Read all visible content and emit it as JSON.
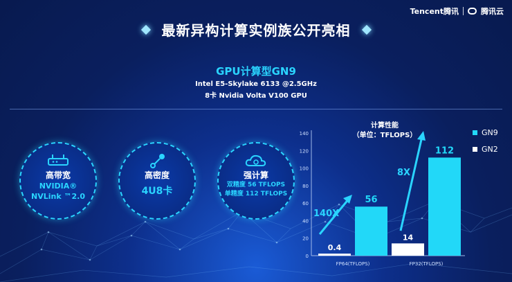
{
  "logo": {
    "brand": "Tencent腾讯",
    "cloud": "腾讯云"
  },
  "header": {
    "title": "最新异构计算实例族公开亮相",
    "subtitle": "GPU计算型GN9",
    "spec_line1": "Intel E5-Skylake 6133 @2.5GHz",
    "spec_line2": "8卡 Nvidia Volta V100 GPU"
  },
  "features": [
    {
      "icon": "router-icon",
      "head": "高带宽",
      "line1": "NVIDIA®",
      "line2": "NVLink ™2.0"
    },
    {
      "icon": "node-icon",
      "head": "高密度",
      "big": "4U8卡"
    },
    {
      "icon": "cloud-gear-icon",
      "head": "强计算",
      "line1": "双精度  56 TFLOPS",
      "line2": "单精度 112 TFLOPS"
    }
  ],
  "colors": {
    "gn9": "#22d8f8",
    "gn2": "#ffffff",
    "accent": "#2ad4ff"
  },
  "chart_data": {
    "type": "bar",
    "title": "计算性能\n（单位：TFLOPS）",
    "categories": [
      "FP64(TFLOPS)",
      "FP32(TFLOPS)"
    ],
    "series": [
      {
        "name": "GN9",
        "values": [
          56,
          112
        ]
      },
      {
        "name": "GN2",
        "values": [
          0.4,
          14
        ]
      }
    ],
    "ylim": [
      0,
      140
    ],
    "yticks": [
      0,
      20,
      40,
      60,
      80,
      100,
      120,
      140
    ],
    "annotations": [
      "140X",
      "8X"
    ],
    "legend": "right"
  }
}
